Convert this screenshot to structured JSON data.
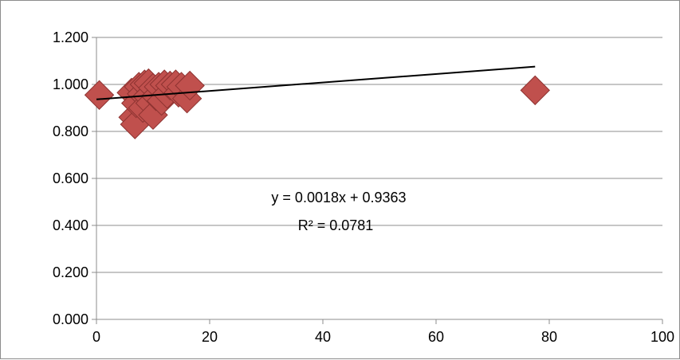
{
  "chart_data": {
    "type": "scatter",
    "title": "",
    "xlabel": "",
    "ylabel": "",
    "xlim": [
      0,
      100
    ],
    "ylim": [
      0,
      1.2
    ],
    "x_ticks": [
      "0",
      "20",
      "40",
      "60",
      "80",
      "100"
    ],
    "y_ticks": [
      "0.000",
      "0.200",
      "0.400",
      "0.600",
      "0.800",
      "1.000",
      "1.200"
    ],
    "grid": "horizontal",
    "legend": "none",
    "marker": "diamond",
    "marker_color": "#c0504d",
    "points": [
      {
        "x": 0.5,
        "y": 0.955
      },
      {
        "x": 6.2,
        "y": 0.965
      },
      {
        "x": 6.5,
        "y": 0.86
      },
      {
        "x": 6.8,
        "y": 0.83
      },
      {
        "x": 7.0,
        "y": 0.92
      },
      {
        "x": 7.5,
        "y": 0.99
      },
      {
        "x": 8.0,
        "y": 0.96
      },
      {
        "x": 8.2,
        "y": 0.9
      },
      {
        "x": 8.5,
        "y": 1.0
      },
      {
        "x": 9.0,
        "y": 0.95
      },
      {
        "x": 9.2,
        "y": 1.005
      },
      {
        "x": 9.5,
        "y": 0.92
      },
      {
        "x": 10.0,
        "y": 0.87
      },
      {
        "x": 10.0,
        "y": 0.985
      },
      {
        "x": 10.5,
        "y": 0.95
      },
      {
        "x": 11.0,
        "y": 0.99
      },
      {
        "x": 11.5,
        "y": 0.93
      },
      {
        "x": 12.0,
        "y": 1.0
      },
      {
        "x": 12.5,
        "y": 0.96
      },
      {
        "x": 13.0,
        "y": 0.995
      },
      {
        "x": 14.0,
        "y": 1.0
      },
      {
        "x": 14.5,
        "y": 0.965
      },
      {
        "x": 15.0,
        "y": 0.99
      },
      {
        "x": 16.0,
        "y": 0.94
      },
      {
        "x": 16.5,
        "y": 0.995
      },
      {
        "x": 77.5,
        "y": 0.975
      }
    ],
    "trendline": {
      "type": "linear",
      "slope": 0.0018,
      "intercept": 0.9363,
      "x_range": [
        0,
        77.5
      ],
      "color": "#000000",
      "equation_label": "y = 0.0018x + 0.9363",
      "r2_label": "R² = 0.0781"
    }
  }
}
